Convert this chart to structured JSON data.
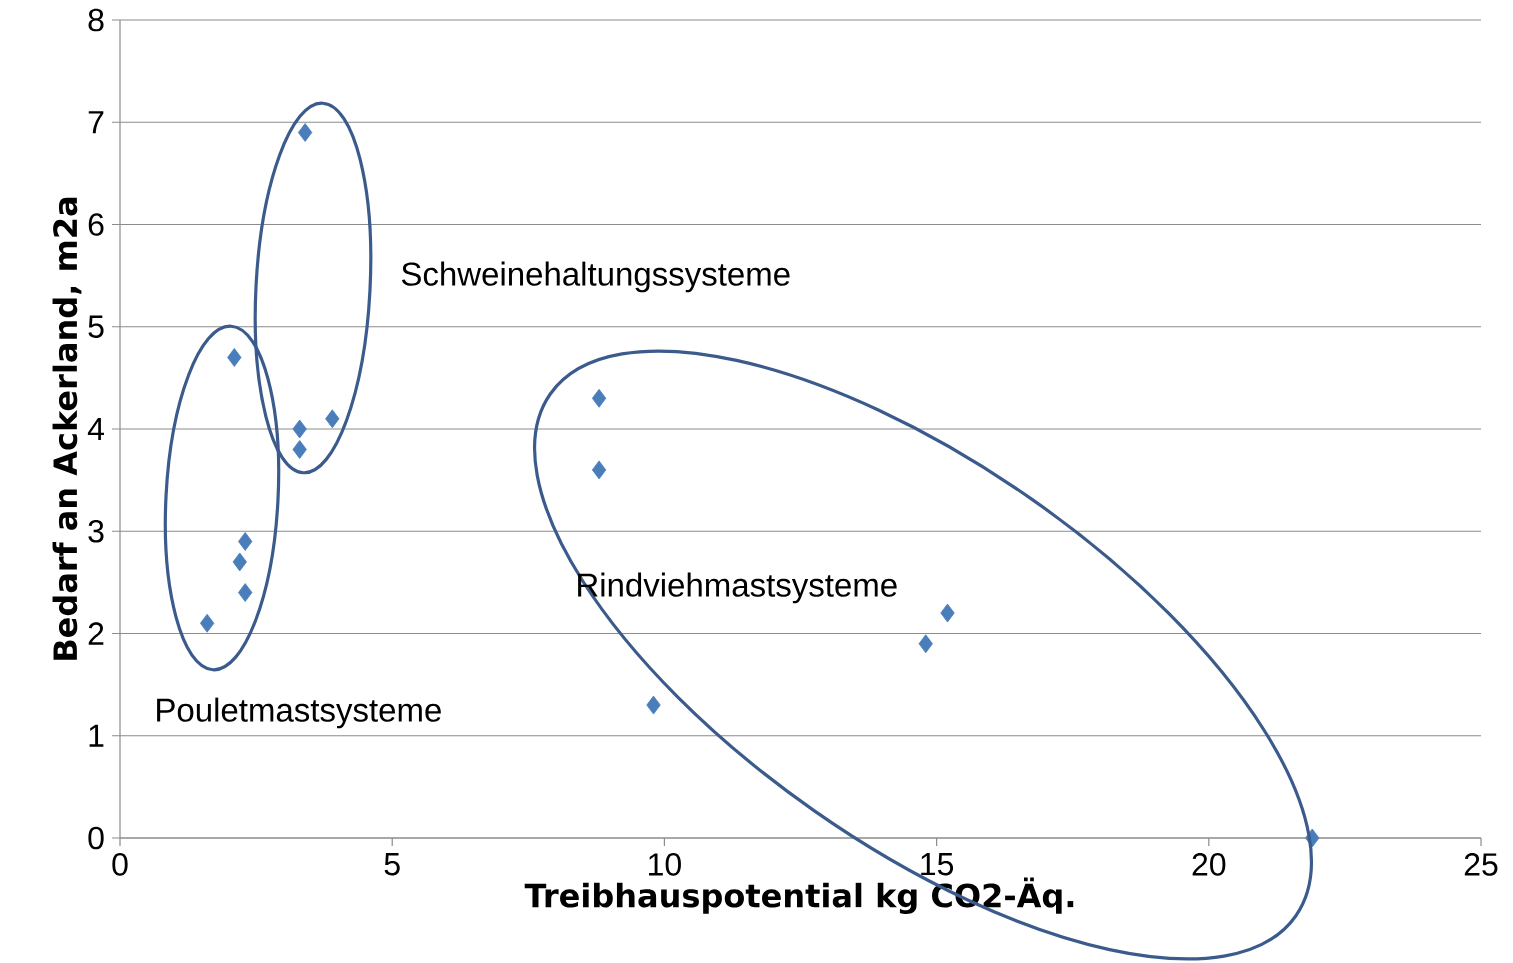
{
  "chart_data": {
    "type": "scatter",
    "xlabel": "Treibhauspotential kg CO2-Äq.",
    "ylabel": "Bedarf an Ackerland, m2a",
    "x": [
      1.6,
      2.1,
      2.3,
      2.2,
      2.3,
      3.4,
      3.3,
      3.3,
      3.9,
      8.8,
      8.8,
      9.8,
      14.8,
      15.2,
      21.9
    ],
    "values": [
      2.1,
      4.7,
      2.9,
      2.7,
      2.4,
      6.9,
      4.0,
      3.8,
      4.1,
      4.3,
      3.6,
      1.3,
      1.9,
      2.2,
      0
    ],
    "color": "#4a7ebb",
    "marker": "diamond",
    "xlim": [
      0,
      25
    ],
    "ylim": [
      0,
      8
    ],
    "xticks": [
      0,
      5,
      10,
      15,
      20,
      25
    ],
    "yticks": [
      0,
      1,
      2,
      3,
      4,
      5,
      6,
      7,
      8
    ],
    "grid": "y",
    "annotations": [
      "Schweinehaltungssysteme",
      "Rindviehmastsysteme",
      "Pouletmastsysteme"
    ]
  }
}
